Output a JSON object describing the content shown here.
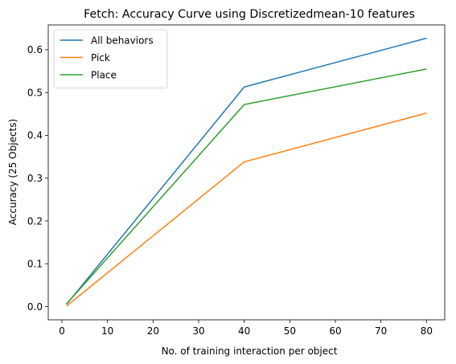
{
  "chart_data": {
    "type": "line",
    "title": "Fetch: Accuracy Curve using Discretizedmean-10 features",
    "xlabel": "No. of training interaction per object",
    "ylabel": "Accuracy (25 Objects)",
    "xlim": [
      -3,
      84
    ],
    "ylim": [
      -0.031,
      0.658
    ],
    "xticks": [
      0,
      10,
      20,
      30,
      40,
      50,
      60,
      70,
      80
    ],
    "yticks": [
      0.0,
      0.1,
      0.2,
      0.3,
      0.4,
      0.5,
      0.6
    ],
    "ytick_labels": [
      "0.0",
      "0.1",
      "0.2",
      "0.3",
      "0.4",
      "0.5",
      "0.6"
    ],
    "grid": false,
    "legend_position": "top-left",
    "x": [
      1,
      40,
      80
    ],
    "series": [
      {
        "name": "All behaviors",
        "color": "#1f77b4",
        "values": [
          0.005,
          0.513,
          0.627
        ]
      },
      {
        "name": "Pick",
        "color": "#ff7f0e",
        "values": [
          0.001,
          0.338,
          0.452
        ]
      },
      {
        "name": "Place",
        "color": "#2ca02c",
        "values": [
          0.006,
          0.472,
          0.555
        ]
      }
    ]
  }
}
